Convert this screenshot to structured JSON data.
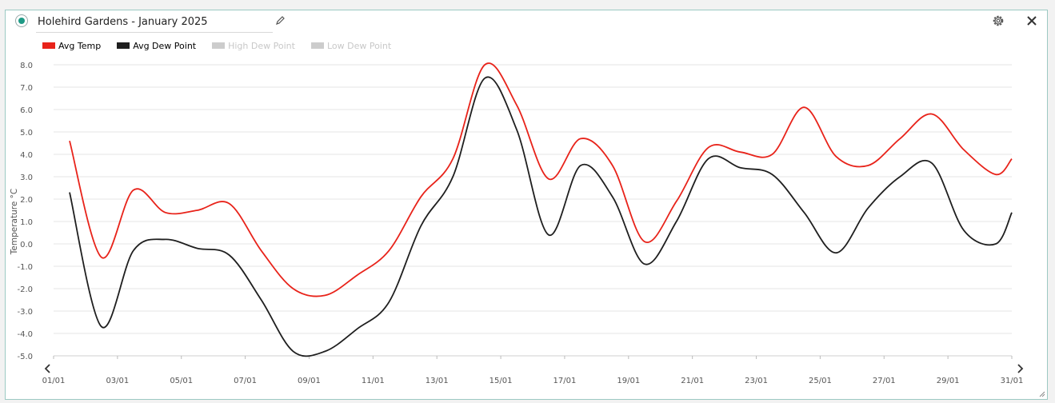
{
  "header": {
    "title": "Holehird Gardens - January 2025"
  },
  "icons": {
    "status": "status-dot-icon",
    "edit": "pencil-icon",
    "settings": "gear-icon",
    "close": "close-icon",
    "nav_left": "chevron-left-icon",
    "nav_right": "chevron-right-icon",
    "resize": "resize-handle-icon"
  },
  "colors": {
    "avg_temp": "#e8231a",
    "avg_dew": "#1f1f1f",
    "disabled": "#cccccc",
    "accent": "#1f9a86"
  },
  "legend": [
    {
      "label": "Avg Temp",
      "color": "#e8231a",
      "enabled": true
    },
    {
      "label": "Avg Dew Point",
      "color": "#1f1f1f",
      "enabled": true
    },
    {
      "label": "High Dew Point",
      "color": "#cccccc",
      "enabled": false
    },
    {
      "label": "Low Dew Point",
      "color": "#cccccc",
      "enabled": false
    }
  ],
  "chart_data": {
    "type": "line",
    "ylabel": "Temperature °C",
    "xlabel": "",
    "ylim": [
      -5.0,
      8.0
    ],
    "yticks": [
      "8.0",
      "7.0",
      "6.0",
      "5.0",
      "4.0",
      "3.0",
      "2.0",
      "1.0",
      "0.0",
      "-1.0",
      "-2.0",
      "-3.0",
      "-4.0",
      "-5.0"
    ],
    "xticks": [
      "01/01",
      "03/01",
      "05/01",
      "07/01",
      "09/01",
      "11/01",
      "13/01",
      "15/01",
      "17/01",
      "19/01",
      "21/01",
      "23/01",
      "25/01",
      "27/01",
      "29/01",
      "31/01"
    ],
    "grid": true,
    "legend_position": "top-left",
    "x": [
      1.5,
      2.5,
      3.5,
      4.5,
      5.5,
      6.5,
      7.5,
      8.5,
      9.5,
      10.5,
      11.5,
      12.5,
      13.5,
      14.5,
      15.5,
      16.5,
      17.5,
      18.5,
      19.5,
      20.5,
      21.5,
      22.5,
      23.5,
      24.5,
      25.5,
      26.5,
      27.5,
      28.5,
      29.5,
      30.5,
      31.0
    ],
    "series": [
      {
        "name": "Avg Temp",
        "values": [
          4.6,
          -0.6,
          2.4,
          1.4,
          1.5,
          1.8,
          -0.3,
          -2.0,
          -2.3,
          -1.4,
          -0.3,
          2.1,
          3.8,
          8.0,
          6.2,
          2.9,
          4.7,
          3.5,
          0.1,
          1.9,
          4.3,
          4.1,
          4.0,
          6.1,
          3.9,
          3.5,
          4.7,
          5.8,
          4.2,
          3.1,
          3.8
        ]
      },
      {
        "name": "Avg Dew Point",
        "values": [
          2.3,
          -3.7,
          -0.3,
          0.2,
          -0.2,
          -0.5,
          -2.5,
          -4.8,
          -4.8,
          -3.8,
          -2.6,
          0.8,
          3.0,
          7.4,
          5.1,
          0.4,
          3.5,
          2.1,
          -0.9,
          1.0,
          3.8,
          3.4,
          3.1,
          1.4,
          -0.4,
          1.6,
          3.0,
          3.6,
          0.6,
          0.0,
          1.4
        ]
      }
    ]
  }
}
